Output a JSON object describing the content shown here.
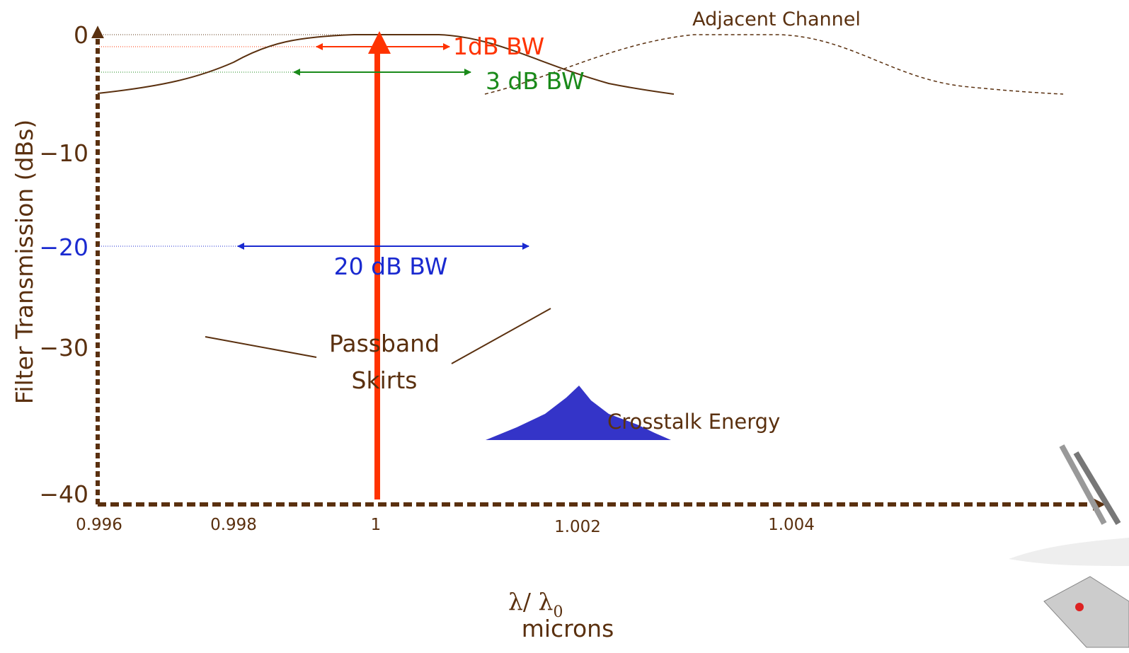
{
  "y_axis": {
    "label": "Filter Transmission (dBs)",
    "ticks": [
      "0",
      "−10",
      "−20",
      "−30",
      "−40"
    ]
  },
  "x_axis": {
    "ticks": [
      "0.996",
      "0.998",
      "1",
      "1.002",
      "1.004"
    ],
    "label_symbol": "λ/ λ",
    "label_subscript": "0",
    "label_unit": "microns"
  },
  "annotations": {
    "adjacent_channel": "Adjacent Channel",
    "bw_1db": "1dB BW",
    "bw_3db": "3 dB BW",
    "bw_20db": "20 dB BW",
    "passband_skirts": [
      "Passband",
      "Skirts"
    ],
    "crosstalk": "Crosstalk Energy"
  }
}
